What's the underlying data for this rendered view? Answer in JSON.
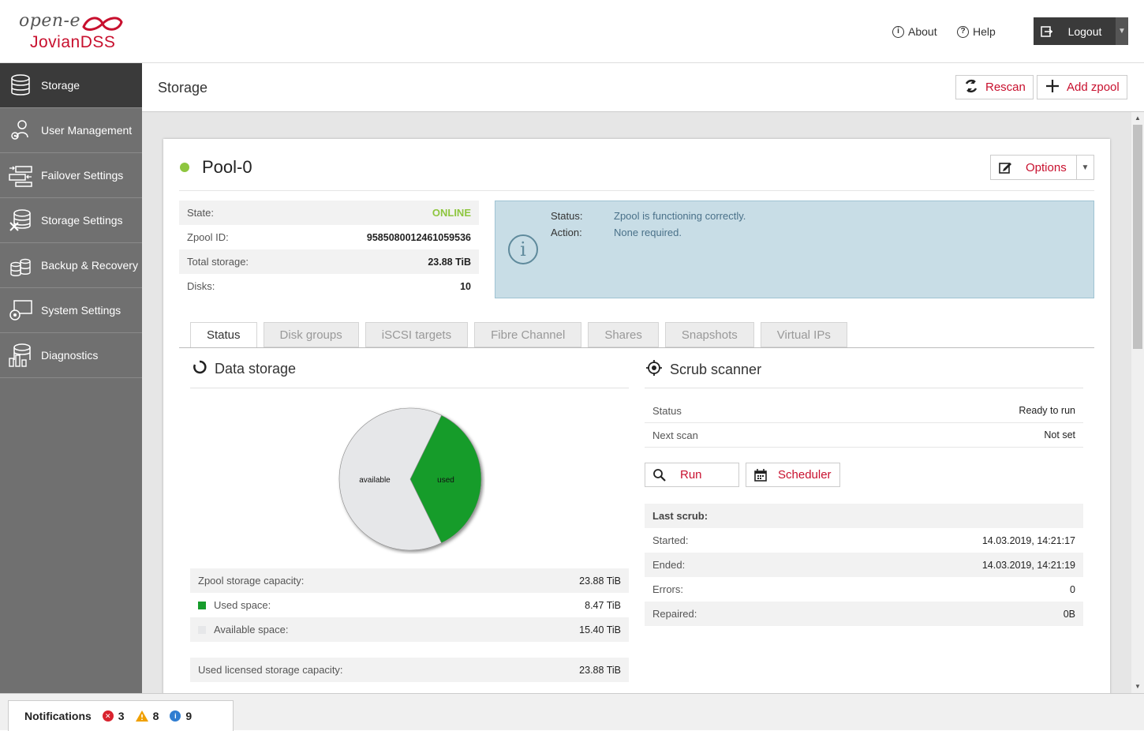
{
  "brand": {
    "top": "open-e",
    "bottom": "JovianDSS"
  },
  "header": {
    "about": "About",
    "help": "Help",
    "logout": "Logout"
  },
  "sidebar": {
    "items": [
      {
        "label": "Storage"
      },
      {
        "label": "User Management"
      },
      {
        "label": "Failover Settings"
      },
      {
        "label": "Storage Settings"
      },
      {
        "label": "Backup & Recovery"
      },
      {
        "label": "System Settings"
      },
      {
        "label": "Diagnostics"
      }
    ]
  },
  "titlebar": {
    "title": "Storage",
    "rescan": "Rescan",
    "add_zpool": "Add zpool"
  },
  "pool": {
    "name": "Pool-0",
    "options": "Options",
    "info": [
      {
        "k": "State:",
        "v": "ONLINE"
      },
      {
        "k": "Zpool ID:",
        "v": "9585080012461059536"
      },
      {
        "k": "Total storage:",
        "v": "23.88 TiB"
      },
      {
        "k": "Disks:",
        "v": "10"
      }
    ],
    "status_box": {
      "status_k": "Status:",
      "status_v": "Zpool is functioning correctly.",
      "action_k": "Action:",
      "action_v": "None required."
    }
  },
  "tabs": [
    "Status",
    "Disk groups",
    "iSCSI targets",
    "Fibre Channel",
    "Shares",
    "Snapshots",
    "Virtual IPs"
  ],
  "data_storage": {
    "title": "Data storage",
    "rows": [
      {
        "k": "Zpool storage capacity:",
        "v": "23.88 TiB"
      },
      {
        "k": "Used space:",
        "v": "8.47 TiB"
      },
      {
        "k": "Available space:",
        "v": "15.40 TiB"
      }
    ],
    "licensed": {
      "k": "Used licensed storage capacity:",
      "v": "23.88 TiB"
    }
  },
  "chart_data": {
    "type": "pie",
    "labels": [
      "available",
      "used"
    ],
    "values": [
      15.4,
      8.47
    ],
    "colors": [
      "#e6e7e9",
      "#169c2b"
    ]
  },
  "scrub": {
    "title": "Scrub scanner",
    "rows": [
      {
        "k": "Status",
        "v": "Ready to run"
      },
      {
        "k": "Next scan",
        "v": "Not set"
      }
    ],
    "run": "Run",
    "scheduler": "Scheduler",
    "last_scrub_label": "Last scrub:",
    "last": [
      {
        "k": "Started:",
        "v": "14.03.2019, 14:21:17"
      },
      {
        "k": "Ended:",
        "v": "14.03.2019, 14:21:19"
      },
      {
        "k": "Errors:",
        "v": "0"
      },
      {
        "k": "Repaired:",
        "v": "0B"
      }
    ]
  },
  "notifications": {
    "label": "Notifications",
    "errors": "3",
    "warnings": "8",
    "info": "9"
  }
}
